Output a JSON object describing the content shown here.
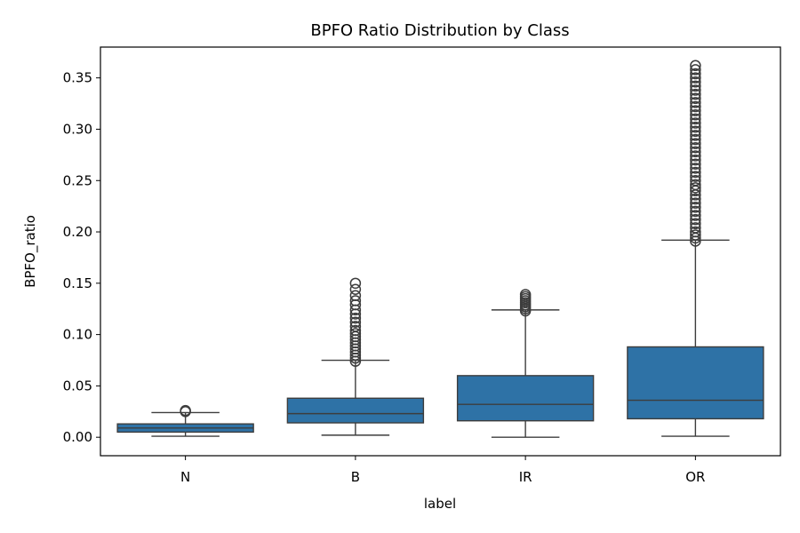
{
  "chart_data": {
    "type": "box",
    "title": "BPFO Ratio Distribution by Class",
    "xlabel": "label",
    "ylabel": "BPFO_ratio",
    "ylim": [
      -0.018,
      0.38
    ],
    "yticks": [
      "0.00",
      "0.05",
      "0.10",
      "0.15",
      "0.20",
      "0.25",
      "0.30",
      "0.35"
    ],
    "grid": false,
    "box_color": "#2e72a6",
    "line_color": "#3d3d3d",
    "categories": [
      "N",
      "B",
      "IR",
      "OR"
    ],
    "boxes": [
      {
        "category": "N",
        "whisker_low": 0.001,
        "q1": 0.005,
        "median": 0.009,
        "q3": 0.013,
        "whisker_high": 0.024,
        "outliers": [
          0.025,
          0.026
        ]
      },
      {
        "category": "B",
        "whisker_low": 0.002,
        "q1": 0.014,
        "median": 0.023,
        "q3": 0.038,
        "whisker_high": 0.075,
        "outliers": [
          0.074,
          0.077,
          0.08,
          0.083,
          0.086,
          0.089,
          0.092,
          0.095,
          0.098,
          0.101,
          0.104,
          0.108,
          0.112,
          0.116,
          0.12,
          0.124,
          0.129,
          0.133,
          0.138,
          0.144,
          0.15
        ]
      },
      {
        "category": "IR",
        "whisker_low": 0.0,
        "q1": 0.016,
        "median": 0.032,
        "q3": 0.06,
        "whisker_high": 0.124,
        "outliers": [
          0.123,
          0.125,
          0.127,
          0.129,
          0.131,
          0.133,
          0.135,
          0.137,
          0.139
        ]
      },
      {
        "category": "OR",
        "whisker_low": 0.001,
        "q1": 0.018,
        "median": 0.036,
        "q3": 0.088,
        "whisker_high": 0.192,
        "outliers": [
          0.191,
          0.194,
          0.197,
          0.2,
          0.204,
          0.208,
          0.212,
          0.216,
          0.22,
          0.224,
          0.228,
          0.232,
          0.236,
          0.24,
          0.243,
          0.246,
          0.25,
          0.254,
          0.258,
          0.262,
          0.266,
          0.27,
          0.274,
          0.278,
          0.282,
          0.286,
          0.29,
          0.294,
          0.298,
          0.302,
          0.306,
          0.31,
          0.314,
          0.318,
          0.322,
          0.326,
          0.33,
          0.334,
          0.338,
          0.342,
          0.346,
          0.35,
          0.354,
          0.358,
          0.362
        ]
      }
    ]
  }
}
